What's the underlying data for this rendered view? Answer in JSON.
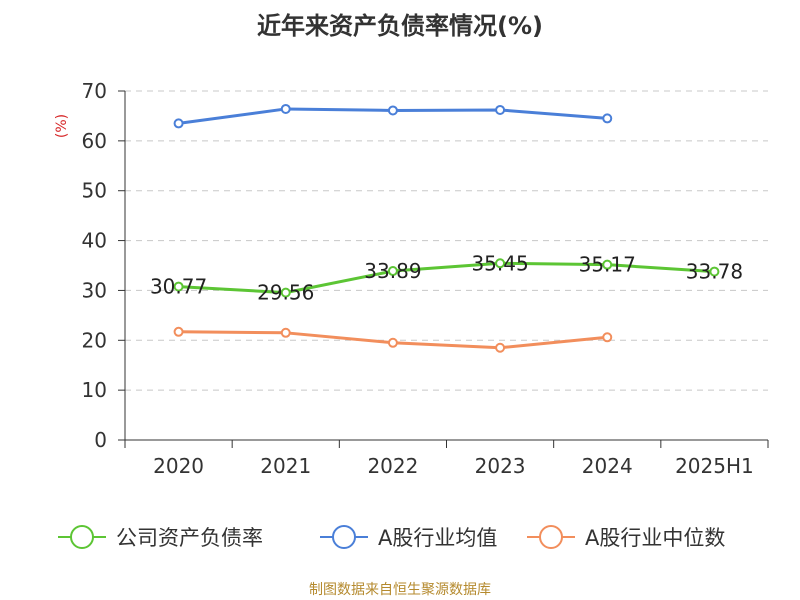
{
  "chart_data": {
    "type": "line",
    "title": "近年来资产负债率情况(%)",
    "ylabel": "(%)",
    "xlabel": "",
    "categories": [
      "2020",
      "2021",
      "2022",
      "2023",
      "2024",
      "2025H1"
    ],
    "ylim": [
      0,
      70
    ],
    "yticks": [
      0,
      10,
      20,
      30,
      40,
      50,
      60,
      70
    ],
    "grid": true,
    "legend_position": "bottom",
    "series": [
      {
        "name": "公司资产负债率",
        "color": "#5cc534",
        "values": [
          30.77,
          29.56,
          33.89,
          35.45,
          35.17,
          33.78
        ],
        "labels": [
          "30.77",
          "29.56",
          "33.89",
          "35.45",
          "35.17",
          "33.78"
        ]
      },
      {
        "name": "A股行业均值",
        "color": "#4a7fd8",
        "values": [
          63.5,
          66.4,
          66.1,
          66.2,
          64.5,
          null
        ]
      },
      {
        "name": "A股行业中位数",
        "color": "#f28e5c",
        "values": [
          21.7,
          21.5,
          19.5,
          18.5,
          20.6,
          null
        ]
      }
    ]
  },
  "source": "制图数据来自恒生聚源数据库"
}
